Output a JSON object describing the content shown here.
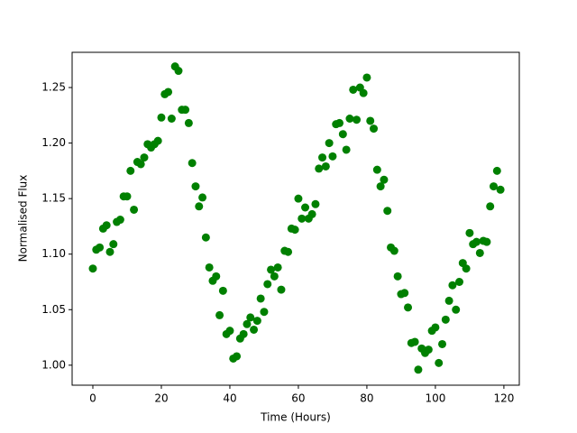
{
  "chart_data": {
    "type": "scatter",
    "xlabel": "Time (Hours)",
    "ylabel": "Normalised Flux",
    "color": "#008000",
    "grid": false,
    "x": [
      0,
      1,
      2,
      3,
      4,
      5,
      6,
      7,
      8,
      9,
      10,
      11,
      12,
      13,
      14,
      15,
      16,
      17,
      18,
      19,
      20,
      21,
      22,
      23,
      24,
      25,
      26,
      27,
      28,
      29,
      30,
      31,
      32,
      33,
      34,
      35,
      36,
      37,
      38,
      39,
      40,
      41,
      42,
      43,
      44,
      45,
      46,
      47,
      48,
      49,
      50,
      51,
      52,
      53,
      54,
      55,
      56,
      57,
      58,
      59,
      60,
      61,
      62,
      63,
      64,
      65,
      66,
      67,
      68,
      69,
      70,
      71,
      72,
      73,
      74,
      75,
      76,
      77,
      78,
      79,
      80,
      81,
      82,
      83,
      84,
      85,
      86,
      87,
      88,
      89,
      90,
      91,
      92,
      93,
      94,
      95,
      96,
      97,
      98,
      99,
      100,
      101,
      102,
      103,
      104,
      105,
      106,
      107,
      108,
      109,
      110,
      111,
      112,
      113,
      114,
      115,
      116,
      117,
      118,
      119
    ],
    "y": [
      1.087,
      1.104,
      1.106,
      1.123,
      1.126,
      1.102,
      1.109,
      1.129,
      1.131,
      1.152,
      1.152,
      1.175,
      1.14,
      1.183,
      1.181,
      1.187,
      1.199,
      1.196,
      1.199,
      1.202,
      1.223,
      1.244,
      1.246,
      1.222,
      1.269,
      1.265,
      1.23,
      1.23,
      1.218,
      1.182,
      1.161,
      1.143,
      1.151,
      1.115,
      1.088,
      1.076,
      1.08,
      1.045,
      1.067,
      1.028,
      1.031,
      1.006,
      1.008,
      1.024,
      1.028,
      1.037,
      1.043,
      1.032,
      1.04,
      1.06,
      1.048,
      1.073,
      1.086,
      1.08,
      1.088,
      1.068,
      1.103,
      1.102,
      1.123,
      1.122,
      1.15,
      1.132,
      1.142,
      1.132,
      1.136,
      1.145,
      1.177,
      1.187,
      1.179,
      1.2,
      1.188,
      1.217,
      1.218,
      1.208,
      1.194,
      1.222,
      1.248,
      1.221,
      1.25,
      1.245,
      1.259,
      1.22,
      1.213,
      1.176,
      1.161,
      1.167,
      1.139,
      1.106,
      1.103,
      1.08,
      1.064,
      1.065,
      1.052,
      1.02,
      1.021,
      0.996,
      1.015,
      1.011,
      1.014,
      1.031,
      1.034,
      1.002,
      1.019,
      1.041,
      1.058,
      1.072,
      1.05,
      1.075,
      1.092,
      1.087,
      1.119,
      1.109,
      1.111,
      1.101,
      1.112,
      1.111,
      1.143,
      1.161,
      1.175,
      1.158
    ],
    "xlim": [
      -6.05,
      124.5
    ],
    "ylim": [
      0.982,
      1.2817
    ],
    "xticks": [
      0,
      20,
      40,
      60,
      80,
      100,
      120
    ],
    "yticks": [
      {
        "value": 1.0,
        "label": "1.00"
      },
      1.05,
      {
        "value": 1.1,
        "label": "1.10"
      },
      1.15,
      {
        "value": 1.2,
        "label": "1.20"
      },
      1.25
    ]
  }
}
